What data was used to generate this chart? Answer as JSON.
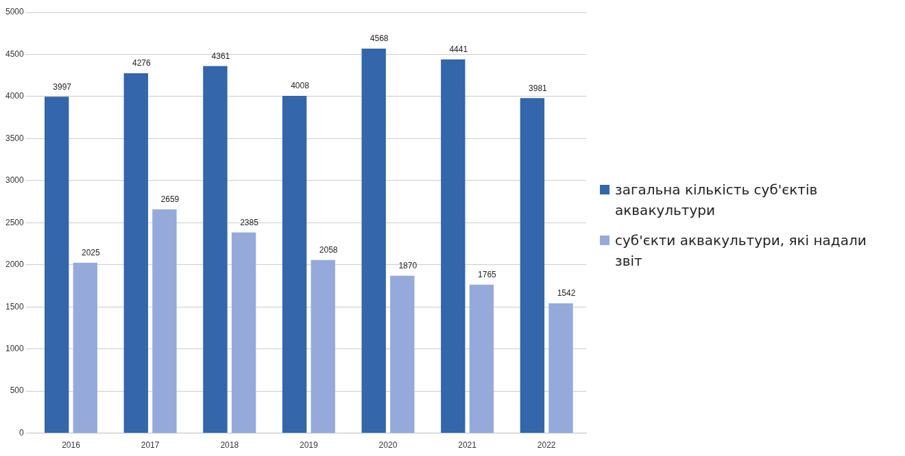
{
  "chart_data": {
    "type": "bar",
    "categories": [
      "2016",
      "2017",
      "2018",
      "2019",
      "2020",
      "2021",
      "2022"
    ],
    "series": [
      {
        "name": "загальна кількість суб'єктів аквакультури",
        "color": "#3366aa",
        "values": [
          3997,
          4276,
          4361,
          4008,
          4568,
          4441,
          3981
        ]
      },
      {
        "name": "суб'єкти аквакультури, які надали звіт",
        "color": "#95aadb",
        "values": [
          2025,
          2659,
          2385,
          2058,
          1870,
          1765,
          1542
        ]
      }
    ],
    "ylim": [
      0,
      5000
    ],
    "yticks": [
      0,
      500,
      1000,
      1500,
      2000,
      2500,
      3000,
      3500,
      4000,
      4500,
      5000
    ],
    "grid": "y",
    "legend": "right",
    "data_labels": true
  }
}
